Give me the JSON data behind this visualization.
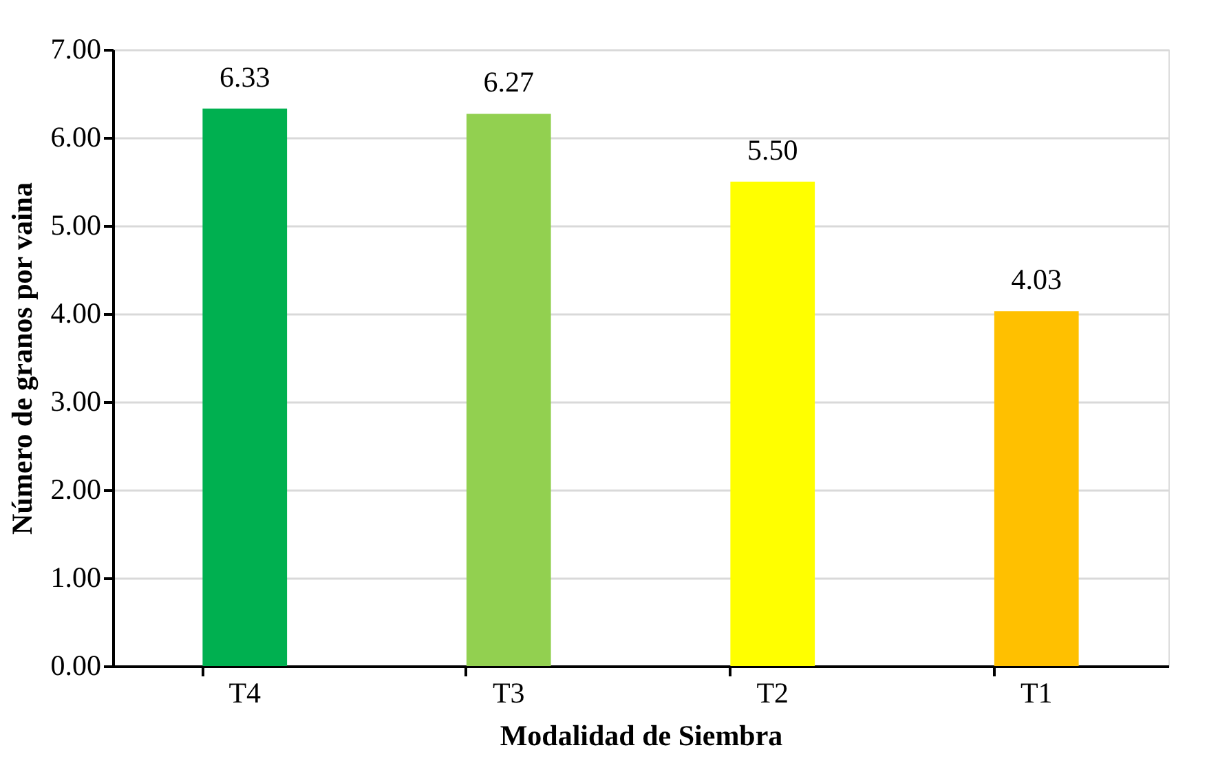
{
  "chart_data": {
    "type": "bar",
    "xlabel": "Modalidad de Siembra",
    "ylabel": "Número de granos por vaina",
    "categories": [
      "T4",
      "T3",
      "T2",
      "T1"
    ],
    "values": [
      6.33,
      6.27,
      5.5,
      4.03
    ],
    "colors": [
      "#00b050",
      "#92d050",
      "#ffff00",
      "#ffc000"
    ],
    "value_labels": [
      "6.33",
      "6.27",
      "5.50",
      "4.03"
    ],
    "ylim": [
      0,
      7
    ],
    "yticks": [
      {
        "value": 0,
        "label": "0.00"
      },
      {
        "value": 1,
        "label": "1.00"
      },
      {
        "value": 2,
        "label": "2.00"
      },
      {
        "value": 3,
        "label": "3.00"
      },
      {
        "value": 4,
        "label": "4.00"
      },
      {
        "value": 5,
        "label": "5.00"
      },
      {
        "value": 6,
        "label": "6.00"
      },
      {
        "value": 7,
        "label": "7.00"
      }
    ],
    "grid": "y",
    "legend": false
  }
}
